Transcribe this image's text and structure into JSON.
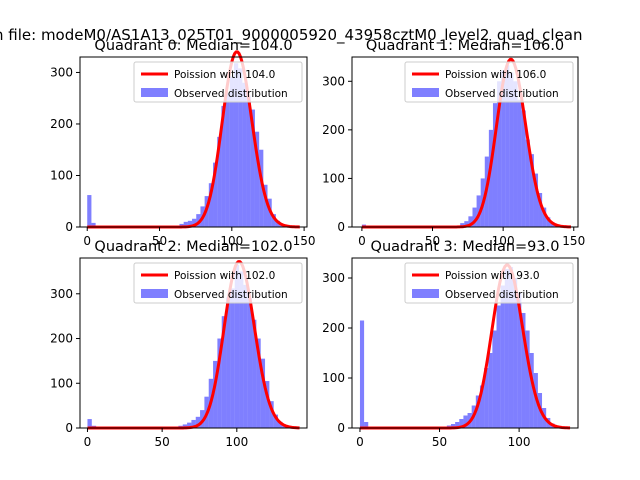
{
  "suptitle": "n file: modeM0/AS1A13_025T01_9000005920_43958cztM0_level2_quad_clean",
  "chart_data": [
    {
      "type": "bar",
      "title": "Quadrant 0: Median=104.0",
      "median": 104.0,
      "xlim": [
        -5,
        152
      ],
      "ylim": [
        0,
        330
      ],
      "xticks": [
        0,
        50,
        100,
        150
      ],
      "yticks": [
        0,
        100,
        200,
        300
      ],
      "legend": {
        "placement": "top-right",
        "entries": [
          "Poission with 104.0",
          "Observed distribution"
        ]
      },
      "series": [
        {
          "name": "Observed distribution",
          "kind": "histogram",
          "bin_width": 2.9,
          "bin_starts": [
            0.0,
            2.9,
            63.8,
            66.7,
            69.6,
            72.5,
            75.4,
            78.3,
            81.2,
            84.1,
            87.0,
            89.9,
            92.8,
            95.7,
            98.6,
            101.5,
            104.4,
            107.3,
            110.2,
            113.1,
            116.0,
            118.9,
            121.8,
            124.7,
            127.6,
            130.5,
            133.4,
            136.3,
            139.2,
            142.1
          ],
          "counts": [
            62,
            8,
            6,
            10,
            12,
            16,
            25,
            40,
            60,
            85,
            125,
            175,
            235,
            260,
            292,
            318,
            308,
            280,
            255,
            228,
            185,
            150,
            82,
            55,
            25,
            12,
            5,
            3,
            2,
            1
          ]
        },
        {
          "name": "Poission with 104.0",
          "kind": "poisson",
          "lambda": 104.0,
          "scale": 340
        }
      ]
    },
    {
      "type": "bar",
      "title": "Quadrant 1: Median=106.0",
      "median": 106.0,
      "xlim": [
        -7,
        153
      ],
      "ylim": [
        0,
        350
      ],
      "xticks": [
        0,
        50,
        100,
        150
      ],
      "yticks": [
        0,
        100,
        200,
        300
      ],
      "legend": {
        "placement": "top-right",
        "entries": [
          "Poission with 106.0",
          "Observed distribution"
        ]
      },
      "series": [
        {
          "name": "Observed distribution",
          "kind": "histogram",
          "bin_width": 2.9,
          "bin_starts": [
            0.0,
            2.9,
            69.6,
            72.5,
            75.4,
            78.3,
            81.2,
            84.1,
            87.0,
            89.9,
            92.8,
            95.7,
            98.6,
            101.5,
            104.4,
            107.3,
            110.2,
            113.1,
            116.0,
            118.9,
            121.8,
            124.7,
            127.6,
            130.5,
            133.4,
            136.3,
            139.2,
            142.1
          ],
          "counts": [
            5,
            3,
            8,
            12,
            22,
            40,
            65,
            100,
            145,
            200,
            255,
            300,
            322,
            333,
            318,
            300,
            262,
            240,
            180,
            150,
            110,
            70,
            40,
            20,
            10,
            5,
            3,
            2
          ]
        },
        {
          "name": "Poission with 106.0",
          "kind": "poisson",
          "lambda": 106.0,
          "scale": 345
        }
      ]
    },
    {
      "type": "bar",
      "title": "Quadrant 2: Median=102.0",
      "median": 102.0,
      "xlim": [
        -5,
        147
      ],
      "ylim": [
        0,
        380
      ],
      "xticks": [
        0,
        50,
        100
      ],
      "yticks": [
        0,
        100,
        200,
        300
      ],
      "legend": {
        "placement": "top-right",
        "entries": [
          "Poission with 102.0",
          "Observed distribution"
        ]
      },
      "series": [
        {
          "name": "Observed distribution",
          "kind": "histogram",
          "bin_width": 2.9,
          "bin_starts": [
            0.0,
            2.9,
            58.0,
            60.9,
            63.8,
            66.7,
            69.6,
            72.5,
            75.4,
            78.3,
            81.2,
            84.1,
            87.0,
            89.9,
            92.8,
            95.7,
            98.6,
            101.5,
            104.4,
            107.3,
            110.2,
            113.1,
            116.0,
            118.9,
            121.8,
            124.7,
            127.6,
            130.5,
            133.4
          ],
          "counts": [
            20,
            5,
            3,
            5,
            8,
            12,
            18,
            25,
            40,
            70,
            110,
            150,
            200,
            250,
            292,
            312,
            365,
            350,
            320,
            290,
            242,
            200,
            155,
            105,
            60,
            30,
            14,
            7,
            3
          ]
        },
        {
          "name": "Poission with 102.0",
          "kind": "poisson",
          "lambda": 102.0,
          "scale": 372
        }
      ]
    },
    {
      "type": "bar",
      "title": "Quadrant 3: Median=93.0",
      "median": 93.0,
      "xlim": [
        -5,
        137
      ],
      "ylim": [
        0,
        340
      ],
      "xticks": [
        0,
        50,
        100
      ],
      "yticks": [
        0,
        100,
        200,
        300
      ],
      "legend": {
        "placement": "top-right",
        "entries": [
          "Poission with 93.0",
          "Observed distribution"
        ]
      },
      "series": [
        {
          "name": "Observed distribution",
          "kind": "histogram",
          "bin_width": 2.6,
          "bin_starts": [
            0.0,
            2.6,
            54.6,
            57.2,
            59.8,
            62.4,
            65.0,
            67.6,
            70.2,
            72.8,
            75.4,
            78.0,
            80.6,
            83.2,
            85.8,
            88.4,
            91.0,
            93.6,
            96.2,
            98.8,
            101.4,
            104.0,
            106.6,
            109.2,
            111.8,
            114.4,
            117.0,
            119.6,
            122.2
          ],
          "counts": [
            215,
            12,
            5,
            8,
            12,
            18,
            25,
            30,
            45,
            65,
            85,
            120,
            150,
            195,
            245,
            285,
            318,
            322,
            300,
            270,
            230,
            195,
            150,
            110,
            70,
            40,
            20,
            9,
            4
          ]
        },
        {
          "name": "Poission with 93.0",
          "kind": "poisson",
          "lambda": 93.0,
          "scale": 326
        }
      ]
    }
  ]
}
